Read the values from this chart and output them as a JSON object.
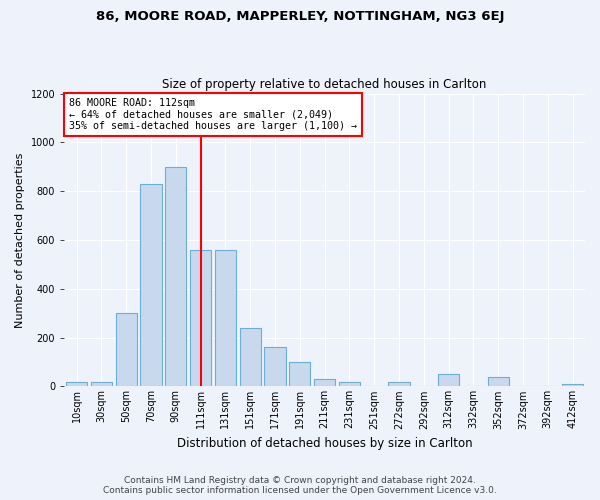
{
  "title1": "86, MOORE ROAD, MAPPERLEY, NOTTINGHAM, NG3 6EJ",
  "title2": "Size of property relative to detached houses in Carlton",
  "xlabel": "Distribution of detached houses by size in Carlton",
  "ylabel": "Number of detached properties",
  "bar_color": "#c8d9ee",
  "bar_edge_color": "#6baed6",
  "vline_color": "red",
  "vline_category_index": 5,
  "annotation_title": "86 MOORE ROAD: 112sqm",
  "annotation_line2": "← 64% of detached houses are smaller (2,049)",
  "annotation_line3": "35% of semi-detached houses are larger (1,100) →",
  "annotation_box_color": "white",
  "annotation_box_edge": "red",
  "footer1": "Contains HM Land Registry data © Crown copyright and database right 2024.",
  "footer2": "Contains public sector information licensed under the Open Government Licence v3.0.",
  "categories": [
    "10sqm",
    "30sqm",
    "50sqm",
    "70sqm",
    "90sqm",
    "111sqm",
    "131sqm",
    "151sqm",
    "171sqm",
    "191sqm",
    "211sqm",
    "231sqm",
    "251sqm",
    "272sqm",
    "292sqm",
    "312sqm",
    "332sqm",
    "352sqm",
    "372sqm",
    "392sqm",
    "412sqm"
  ],
  "values": [
    20,
    20,
    300,
    830,
    900,
    560,
    560,
    240,
    160,
    100,
    30,
    20,
    0,
    20,
    0,
    50,
    0,
    40,
    0,
    0,
    10
  ],
  "ylim": [
    0,
    1200
  ],
  "yticks": [
    0,
    200,
    400,
    600,
    800,
    1000,
    1200
  ],
  "background_color": "#eef2fb",
  "grid_color": "#ffffff",
  "title1_fontsize": 9.5,
  "title2_fontsize": 8.5,
  "xlabel_fontsize": 8.5,
  "ylabel_fontsize": 8,
  "tick_fontsize": 7,
  "footer_fontsize": 6.5
}
